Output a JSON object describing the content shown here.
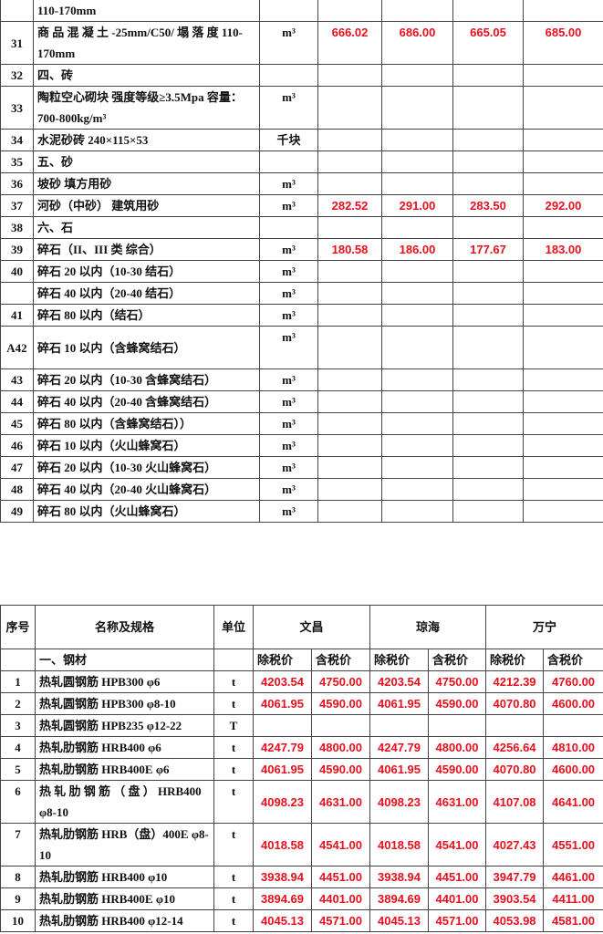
{
  "table1": {
    "rows": [
      {
        "no": "",
        "name": "110-170mm",
        "unit": "",
        "v": [
          "",
          "",
          "",
          ""
        ]
      },
      {
        "no": "31",
        "name": "商 品 混 凝 土 -25mm/C50/ 塌 落 度 110-170mm",
        "unit": "m³",
        "v": [
          "666.02",
          "686.00",
          "665.05",
          "685.00"
        ]
      },
      {
        "no": "32",
        "name": "四、砖",
        "unit": "",
        "v": [
          "",
          "",
          "",
          ""
        ]
      },
      {
        "no": "33",
        "name": "陶粒空心砌块 强度等级≥3.5Mpa 容量：700-800kg/m³",
        "unit": "m³",
        "v": [
          "",
          "",
          "",
          ""
        ]
      },
      {
        "no": "34",
        "name": "水泥砂砖 240×115×53",
        "unit": "千块",
        "v": [
          "",
          "",
          "",
          ""
        ]
      },
      {
        "no": "35",
        "name": "五、砂",
        "unit": "",
        "v": [
          "",
          "",
          "",
          ""
        ]
      },
      {
        "no": "36",
        "name": "坡砂 填方用砂",
        "unit": "m³",
        "v": [
          "",
          "",
          "",
          ""
        ]
      },
      {
        "no": "37",
        "name": "河砂（中砂） 建筑用砂",
        "unit": "m³",
        "v": [
          "282.52",
          "291.00",
          "283.50",
          "292.00"
        ]
      },
      {
        "no": "38",
        "name": "六、石",
        "unit": "",
        "v": [
          "",
          "",
          "",
          ""
        ]
      },
      {
        "no": "39",
        "name": "碎石（II、III 类 综合）",
        "unit": "m³",
        "v": [
          "180.58",
          "186.00",
          "177.67",
          "183.00"
        ]
      },
      {
        "no": "40",
        "name": "碎石 20 以内（10-30 结石）",
        "unit": "m³",
        "v": [
          "",
          "",
          "",
          ""
        ]
      },
      {
        "no": "",
        "name": "碎石 40 以内（20-40 结石）",
        "unit": "m³",
        "v": [
          "",
          "",
          "",
          ""
        ]
      },
      {
        "no": "41",
        "name": "碎石 80 以内（结石）",
        "unit": "m³",
        "v": [
          "",
          "",
          "",
          ""
        ]
      },
      {
        "no": "A42",
        "name": "碎石 10 以内（含蜂窝结石）",
        "unit": "m³",
        "v": [
          "",
          "",
          "",
          ""
        ]
      },
      {
        "no": "43",
        "name": "碎石 20 以内（10-30 含蜂窝结石）",
        "unit": "m³",
        "v": [
          "",
          "",
          "",
          ""
        ]
      },
      {
        "no": "44",
        "name": "碎石 40 以内（20-40 含蜂窝结石）",
        "unit": "m³",
        "v": [
          "",
          "",
          "",
          ""
        ]
      },
      {
        "no": "45",
        "name": "碎石 80 以内（含蜂窝结石））",
        "unit": "m³",
        "v": [
          "",
          "",
          "",
          ""
        ]
      },
      {
        "no": "46",
        "name": "碎石 10 以内（火山蜂窝石）",
        "unit": "m³",
        "v": [
          "",
          "",
          "",
          ""
        ]
      },
      {
        "no": "47",
        "name": "碎石 20 以内（10-30 火山蜂窝石）",
        "unit": "m³",
        "v": [
          "",
          "",
          "",
          ""
        ]
      },
      {
        "no": "48",
        "name": "碎石 40 以内（20-40 火山蜂窝石）",
        "unit": "m³",
        "v": [
          "",
          "",
          "",
          ""
        ]
      },
      {
        "no": "49",
        "name": "碎石 80 以内（火山蜂窝石）",
        "unit": "m³",
        "v": [
          "",
          "",
          "",
          ""
        ]
      }
    ]
  },
  "table2": {
    "header": {
      "no": "序号",
      "name": "名称及规格",
      "unit": "单位",
      "regions": [
        "文昌",
        "琼海",
        "万宁"
      ],
      "ex_tax": "除税价",
      "inc_tax": "含税价",
      "section": "一、钢材"
    },
    "rows": [
      {
        "no": "1",
        "name": "热轧圆钢筋 HPB300 φ6",
        "unit": "t",
        "v": [
          "4203.54",
          "4750.00",
          "4203.54",
          "4750.00",
          "4212.39",
          "4760.00"
        ]
      },
      {
        "no": "2",
        "name": "热轧圆钢筋 HPB300 φ8-10",
        "unit": "t",
        "v": [
          "4061.95",
          "4590.00",
          "4061.95",
          "4590.00",
          "4070.80",
          "4600.00"
        ]
      },
      {
        "no": "3",
        "name": "热轧圆钢筋 HPB235 φ12-22",
        "unit": "T",
        "v": [
          "",
          "",
          "",
          "",
          "",
          ""
        ]
      },
      {
        "no": "4",
        "name": "热轧肋钢筋 HRB400 φ6",
        "unit": "t",
        "v": [
          "4247.79",
          "4800.00",
          "4247.79",
          "4800.00",
          "4256.64",
          "4810.00"
        ]
      },
      {
        "no": "5",
        "name": "热轧肋钢筋 HRB400E φ6",
        "unit": "t",
        "v": [
          "4061.95",
          "4590.00",
          "4061.95",
          "4590.00",
          "4070.80",
          "4600.00"
        ]
      },
      {
        "no": "6",
        "name": "热 轧 肋 钢 筋 （ 盘 ） HRB400 φ8-10",
        "unit": "t",
        "v": [
          "4098.23",
          "4631.00",
          "4098.23",
          "4631.00",
          "4107.08",
          "4641.00"
        ]
      },
      {
        "no": "7",
        "name": "热轧肋钢筋 HRB（盘）400E φ8-10",
        "unit": "t",
        "v": [
          "4018.58",
          "4541.00",
          "4018.58",
          "4541.00",
          "4027.43",
          "4551.00"
        ]
      },
      {
        "no": "8",
        "name": "热轧肋钢筋 HRB400 φ10",
        "unit": "t",
        "v": [
          "3938.94",
          "4451.00",
          "3938.94",
          "4451.00",
          "3947.79",
          "4461.00"
        ]
      },
      {
        "no": "9",
        "name": "热轧肋钢筋 HRB400E φ10",
        "unit": "t",
        "v": [
          "3894.69",
          "4401.00",
          "3894.69",
          "4401.00",
          "3903.54",
          "4411.00"
        ]
      },
      {
        "no": "10",
        "name": "热轧肋钢筋 HRB400 φ12-14",
        "unit": "t",
        "v": [
          "4045.13",
          "4571.00",
          "4045.13",
          "4571.00",
          "4053.98",
          "4581.00"
        ]
      }
    ]
  },
  "colors": {
    "price": "#e8101c",
    "border": "#444444"
  }
}
